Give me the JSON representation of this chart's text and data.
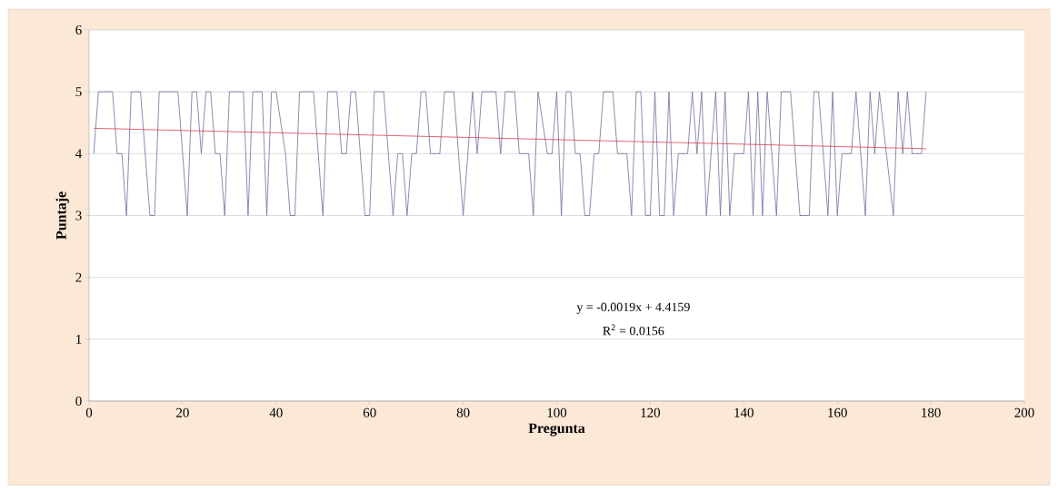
{
  "chart_data": {
    "type": "line",
    "xlabel": "Pregunta",
    "ylabel": "Puntaje",
    "xlim": [
      0,
      200
    ],
    "xticks": [
      0,
      20,
      40,
      60,
      80,
      100,
      120,
      140,
      160,
      180,
      200
    ],
    "ylim": [
      0,
      6
    ],
    "yticks": [
      0,
      1,
      2,
      3,
      4,
      5,
      6
    ],
    "grid": "y",
    "annotations": [
      "y = -0.0019x + 4.4159",
      "R$^{2}$ = 0.0156"
    ],
    "series": [
      {
        "color": "#6e6e9e",
        "x": [
          1,
          2,
          5,
          6,
          7,
          8,
          9,
          11,
          13,
          14,
          15,
          19,
          21,
          22,
          23,
          24,
          25,
          26,
          27,
          28,
          29,
          30,
          33,
          34,
          35,
          37,
          38,
          39,
          40,
          42,
          43,
          44,
          45,
          48,
          50,
          51,
          53,
          54,
          55,
          56,
          57,
          59,
          60,
          61,
          63,
          65,
          66,
          67,
          68,
          69,
          70,
          71,
          72,
          73,
          75,
          76,
          78,
          80,
          82,
          83,
          84,
          87,
          88,
          89,
          91,
          92,
          94,
          95,
          96,
          98,
          99,
          100,
          101,
          102,
          103,
          104,
          105,
          106,
          107,
          108,
          109,
          110,
          112,
          113,
          115,
          116,
          117,
          118,
          119,
          120,
          121,
          122,
          123,
          124,
          125,
          126,
          128,
          129,
          130,
          131,
          132,
          134,
          135,
          136,
          137,
          138,
          140,
          141,
          142,
          143,
          144,
          145,
          147,
          148,
          150,
          152,
          154,
          155,
          156,
          158,
          159,
          160,
          161,
          163,
          164,
          166,
          167,
          168,
          169,
          172,
          173,
          174,
          175,
          176,
          178,
          179
        ],
        "values": [
          4,
          5,
          5,
          4,
          4,
          3,
          5,
          5,
          3,
          3,
          5,
          5,
          3,
          5,
          5,
          4,
          5,
          5,
          4,
          4,
          3,
          5,
          5,
          3,
          5,
          5,
          3,
          5,
          5,
          4,
          3,
          3,
          5,
          5,
          3,
          5,
          5,
          4,
          4,
          5,
          5,
          3,
          3,
          5,
          5,
          3,
          4,
          4,
          3,
          4,
          4,
          5,
          5,
          4,
          4,
          5,
          5,
          3,
          5,
          4,
          5,
          5,
          4,
          5,
          5,
          4,
          4,
          3,
          5,
          4,
          4,
          5,
          3,
          5,
          5,
          4,
          4,
          3,
          3,
          4,
          4,
          5,
          5,
          4,
          4,
          3,
          5,
          5,
          3,
          3,
          5,
          3,
          3,
          5,
          3,
          4,
          4,
          5,
          4,
          5,
          3,
          5,
          3,
          5,
          3,
          4,
          4,
          5,
          3,
          5,
          3,
          5,
          3,
          5,
          5,
          3,
          3,
          5,
          5,
          3,
          5,
          3,
          4,
          4,
          5,
          3,
          5,
          4,
          5,
          3,
          5,
          4,
          5,
          4,
          4,
          5
        ]
      },
      {
        "type": "line",
        "color": "#e0404f",
        "x": [
          1,
          179
        ],
        "values": [
          4.41,
          4.08
        ]
      }
    ]
  }
}
